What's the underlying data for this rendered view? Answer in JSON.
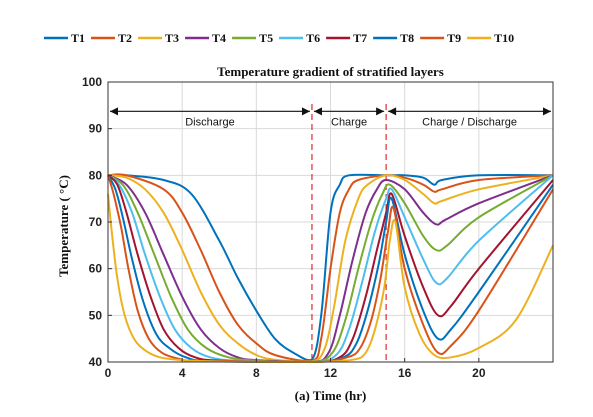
{
  "chart_data": {
    "type": "line",
    "title": "Temperature gradient of stratified layers",
    "xlabel": "(a) Time (hr)",
    "ylabel": "Temperature ( °C)",
    "xlim": [
      0,
      24
    ],
    "ylim": [
      40,
      100
    ],
    "xticks": [
      "0",
      "4",
      "8",
      "12",
      "16",
      "20"
    ],
    "xtick_values": [
      0,
      4,
      8,
      12,
      16,
      20
    ],
    "yticks": [
      "40",
      "50",
      "60",
      "70",
      "80",
      "90",
      "100"
    ],
    "ytick_values": [
      40,
      50,
      60,
      70,
      80,
      90,
      100
    ],
    "grid": true,
    "legend_position": "top",
    "phase_dividers_x": [
      11,
      15
    ],
    "annotations": [
      {
        "label": "Discharge",
        "x_from": 0,
        "x_to": 11,
        "y": 92
      },
      {
        "label": "Charge",
        "x_from": 11,
        "x_to": 15,
        "y": 92
      },
      {
        "label": "Charge / Discharge",
        "x_from": 15,
        "x_to": 24,
        "y": 92
      }
    ],
    "series": [
      {
        "name": "T1",
        "color": "#0072BD",
        "points": [
          [
            0,
            80
          ],
          [
            1,
            80
          ],
          [
            3,
            79
          ],
          [
            4.5,
            76
          ],
          [
            6,
            66
          ],
          [
            7,
            58
          ],
          [
            8,
            51
          ],
          [
            9,
            45
          ],
          [
            10,
            42
          ],
          [
            11,
            40.5
          ],
          [
            11.5,
            50
          ],
          [
            12,
            72
          ],
          [
            12.5,
            78
          ],
          [
            13,
            80
          ],
          [
            15,
            80
          ],
          [
            16,
            80
          ],
          [
            17,
            79.5
          ],
          [
            17.6,
            78
          ],
          [
            18,
            79
          ],
          [
            20,
            80
          ],
          [
            24,
            80
          ]
        ]
      },
      {
        "name": "T2",
        "color": "#D95319",
        "points": [
          [
            0,
            80
          ],
          [
            1,
            80
          ],
          [
            3,
            77
          ],
          [
            4,
            72
          ],
          [
            5,
            64
          ],
          [
            6,
            55
          ],
          [
            7,
            48
          ],
          [
            8,
            44
          ],
          [
            9,
            41.5
          ],
          [
            11,
            40.2
          ],
          [
            11.5,
            45
          ],
          [
            12,
            60
          ],
          [
            12.5,
            72
          ],
          [
            13,
            77
          ],
          [
            13.5,
            79
          ],
          [
            15,
            80
          ],
          [
            16,
            79.5
          ],
          [
            17,
            78
          ],
          [
            17.6,
            76.5
          ],
          [
            18,
            77
          ],
          [
            20,
            79
          ],
          [
            24,
            80
          ]
        ]
      },
      {
        "name": "T3",
        "color": "#EDB120",
        "points": [
          [
            0,
            80
          ],
          [
            1,
            79.5
          ],
          [
            2,
            77
          ],
          [
            3,
            72
          ],
          [
            4,
            64
          ],
          [
            5,
            55
          ],
          [
            6,
            48
          ],
          [
            7,
            44
          ],
          [
            8,
            41.5
          ],
          [
            9,
            40.5
          ],
          [
            11,
            40.1
          ],
          [
            11.7,
            43
          ],
          [
            12.2,
            52
          ],
          [
            12.8,
            66
          ],
          [
            13.5,
            75
          ],
          [
            14,
            78
          ],
          [
            15,
            80
          ],
          [
            16,
            79
          ],
          [
            17,
            76
          ],
          [
            17.6,
            74
          ],
          [
            18,
            74.5
          ],
          [
            20,
            77
          ],
          [
            24,
            80
          ]
        ]
      },
      {
        "name": "T4",
        "color": "#7E2F8E",
        "points": [
          [
            0,
            80
          ],
          [
            1,
            78
          ],
          [
            2,
            72
          ],
          [
            3,
            63
          ],
          [
            4,
            54
          ],
          [
            5,
            47
          ],
          [
            6,
            43
          ],
          [
            7,
            41
          ],
          [
            8,
            40.4
          ],
          [
            11,
            40
          ],
          [
            11.9,
            42
          ],
          [
            12.5,
            50
          ],
          [
            13.2,
            62
          ],
          [
            13.9,
            72
          ],
          [
            14.5,
            77
          ],
          [
            15,
            79
          ],
          [
            16,
            77
          ],
          [
            17,
            72
          ],
          [
            17.7,
            69.5
          ],
          [
            18.2,
            70.5
          ],
          [
            20,
            74
          ],
          [
            24,
            80
          ]
        ]
      },
      {
        "name": "T5",
        "color": "#77AC30",
        "points": [
          [
            0,
            80
          ],
          [
            0.8,
            78
          ],
          [
            1.6,
            72
          ],
          [
            2.5,
            63
          ],
          [
            3.4,
            54
          ],
          [
            4.3,
            47
          ],
          [
            5.3,
            43
          ],
          [
            6.5,
            41
          ],
          [
            8,
            40.3
          ],
          [
            11,
            40
          ],
          [
            12.1,
            42
          ],
          [
            12.8,
            49
          ],
          [
            13.5,
            60
          ],
          [
            14.2,
            70
          ],
          [
            14.8,
            76
          ],
          [
            15.2,
            78
          ],
          [
            16,
            74
          ],
          [
            17,
            67
          ],
          [
            17.7,
            64
          ],
          [
            18.3,
            65
          ],
          [
            20,
            71
          ],
          [
            24,
            80
          ]
        ]
      },
      {
        "name": "T6",
        "color": "#4DBEEE",
        "points": [
          [
            0,
            80
          ],
          [
            0.6,
            78
          ],
          [
            1.3,
            72
          ],
          [
            2,
            63
          ],
          [
            2.8,
            54
          ],
          [
            3.6,
            47
          ],
          [
            4.5,
            43
          ],
          [
            5.5,
            41
          ],
          [
            7,
            40.3
          ],
          [
            11,
            40
          ],
          [
            12.3,
            41.5
          ],
          [
            13,
            47
          ],
          [
            13.7,
            57
          ],
          [
            14.4,
            68
          ],
          [
            15,
            75
          ],
          [
            15.3,
            77
          ],
          [
            16,
            71
          ],
          [
            17,
            62
          ],
          [
            17.7,
            57
          ],
          [
            18.3,
            58
          ],
          [
            20,
            66
          ],
          [
            24,
            80
          ]
        ]
      },
      {
        "name": "T7",
        "color": "#A2142F",
        "points": [
          [
            0,
            80
          ],
          [
            0.5,
            78
          ],
          [
            1,
            72
          ],
          [
            1.6,
            63
          ],
          [
            2.3,
            54
          ],
          [
            3,
            47
          ],
          [
            3.8,
            43
          ],
          [
            4.7,
            41
          ],
          [
            6,
            40.3
          ],
          [
            11,
            40
          ],
          [
            12.5,
            41
          ],
          [
            13.2,
            45
          ],
          [
            13.9,
            54
          ],
          [
            14.5,
            64
          ],
          [
            15,
            72
          ],
          [
            15.3,
            76
          ],
          [
            16,
            67
          ],
          [
            17,
            56
          ],
          [
            17.8,
            50
          ],
          [
            18.5,
            52
          ],
          [
            20,
            60
          ],
          [
            24,
            79
          ]
        ]
      },
      {
        "name": "T8",
        "color": "#0072BD",
        "points": [
          [
            0,
            80
          ],
          [
            0.4,
            77
          ],
          [
            0.8,
            71
          ],
          [
            1.3,
            62
          ],
          [
            1.9,
            53
          ],
          [
            2.6,
            46
          ],
          [
            3.3,
            43
          ],
          [
            4.2,
            41
          ],
          [
            5.5,
            40.2
          ],
          [
            11,
            40
          ],
          [
            12.7,
            41
          ],
          [
            13.4,
            44
          ],
          [
            14,
            51
          ],
          [
            14.6,
            61
          ],
          [
            15,
            70
          ],
          [
            15.3,
            75
          ],
          [
            16,
            63
          ],
          [
            17,
            51
          ],
          [
            17.8,
            45
          ],
          [
            18.5,
            47
          ],
          [
            20,
            55
          ],
          [
            24,
            78
          ]
        ]
      },
      {
        "name": "T9",
        "color": "#D95319",
        "points": [
          [
            0,
            80
          ],
          [
            0.3,
            76
          ],
          [
            0.7,
            69
          ],
          [
            1.1,
            60
          ],
          [
            1.6,
            51
          ],
          [
            2.2,
            45
          ],
          [
            2.9,
            42
          ],
          [
            3.8,
            40.7
          ],
          [
            5,
            40.2
          ],
          [
            11,
            40
          ],
          [
            12.9,
            41
          ],
          [
            13.6,
            43
          ],
          [
            14.2,
            49
          ],
          [
            14.7,
            58
          ],
          [
            15.1,
            68
          ],
          [
            15.4,
            73
          ],
          [
            16,
            60
          ],
          [
            17,
            48
          ],
          [
            17.8,
            42
          ],
          [
            18.5,
            43.5
          ],
          [
            20,
            51
          ],
          [
            24,
            77
          ]
        ]
      },
      {
        "name": "T10",
        "color": "#EDB120",
        "points": [
          [
            0,
            76
          ],
          [
            0.2,
            68
          ],
          [
            0.5,
            58
          ],
          [
            0.9,
            50
          ],
          [
            1.4,
            45
          ],
          [
            2,
            42.5
          ],
          [
            2.8,
            41
          ],
          [
            4,
            40.4
          ],
          [
            6,
            40.1
          ],
          [
            11,
            40
          ],
          [
            13.2,
            40.5
          ],
          [
            13.9,
            42
          ],
          [
            14.4,
            47
          ],
          [
            14.9,
            56
          ],
          [
            15.2,
            66
          ],
          [
            15.5,
            70
          ],
          [
            16,
            56
          ],
          [
            16.8,
            46
          ],
          [
            17.6,
            41.5
          ],
          [
            18.5,
            41
          ],
          [
            20,
            43
          ],
          [
            22,
            49
          ],
          [
            24,
            65
          ]
        ]
      }
    ]
  }
}
